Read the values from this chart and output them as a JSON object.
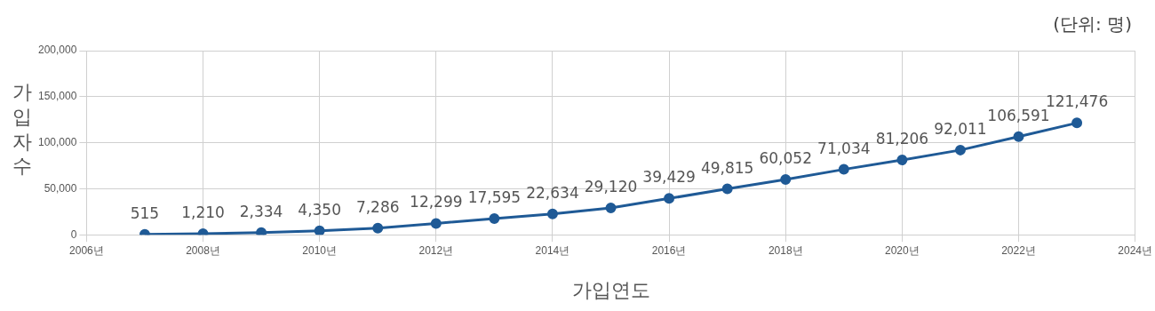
{
  "chart_data": {
    "type": "line",
    "xlabel": "가입연도",
    "ylabel": "가입자수",
    "annotations": [
      "(단위: 명)"
    ],
    "x": [
      2007,
      2008,
      2009,
      2010,
      2011,
      2012,
      2013,
      2014,
      2015,
      2016,
      2017,
      2018,
      2019,
      2020,
      2021,
      2022,
      2023
    ],
    "series": [
      {
        "color": "#1f5a96",
        "values": [
          515,
          1210,
          2334,
          4350,
          7286,
          12299,
          17595,
          22634,
          29120,
          39429,
          49815,
          60052,
          71034,
          81206,
          92011,
          106591,
          121476
        ],
        "value_labels": [
          "515",
          "1,210",
          "2,334",
          "4,350",
          "7,286",
          "12,299",
          "17,595",
          "22,634",
          "29,120",
          "39,429",
          "49,815",
          "60,052",
          "71,034",
          "81,206",
          "92,011",
          "106,591",
          "121,476"
        ]
      }
    ],
    "xlim": [
      2006,
      2024
    ],
    "xticks": [
      {
        "value": 2006,
        "label": "2006년"
      },
      {
        "value": 2008,
        "label": "2008년"
      },
      {
        "value": 2010,
        "label": "2010년"
      },
      {
        "value": 2012,
        "label": "2012년"
      },
      {
        "value": 2014,
        "label": "2014년"
      },
      {
        "value": 2016,
        "label": "2016년"
      },
      {
        "value": 2018,
        "label": "2018년"
      },
      {
        "value": 2020,
        "label": "2020년"
      },
      {
        "value": 2022,
        "label": "2022년"
      },
      {
        "value": 2024,
        "label": "2024년"
      }
    ],
    "ylim": [
      0,
      200000
    ],
    "yticks": [
      {
        "value": 0,
        "label": "0"
      },
      {
        "value": 50000,
        "label": "50,000"
      },
      {
        "value": 100000,
        "label": "100,000"
      },
      {
        "value": 150000,
        "label": "150,000"
      },
      {
        "value": 200000,
        "label": "200,000"
      }
    ],
    "grid": true,
    "legend": false,
    "marker": "circle",
    "line_style": "solid"
  }
}
